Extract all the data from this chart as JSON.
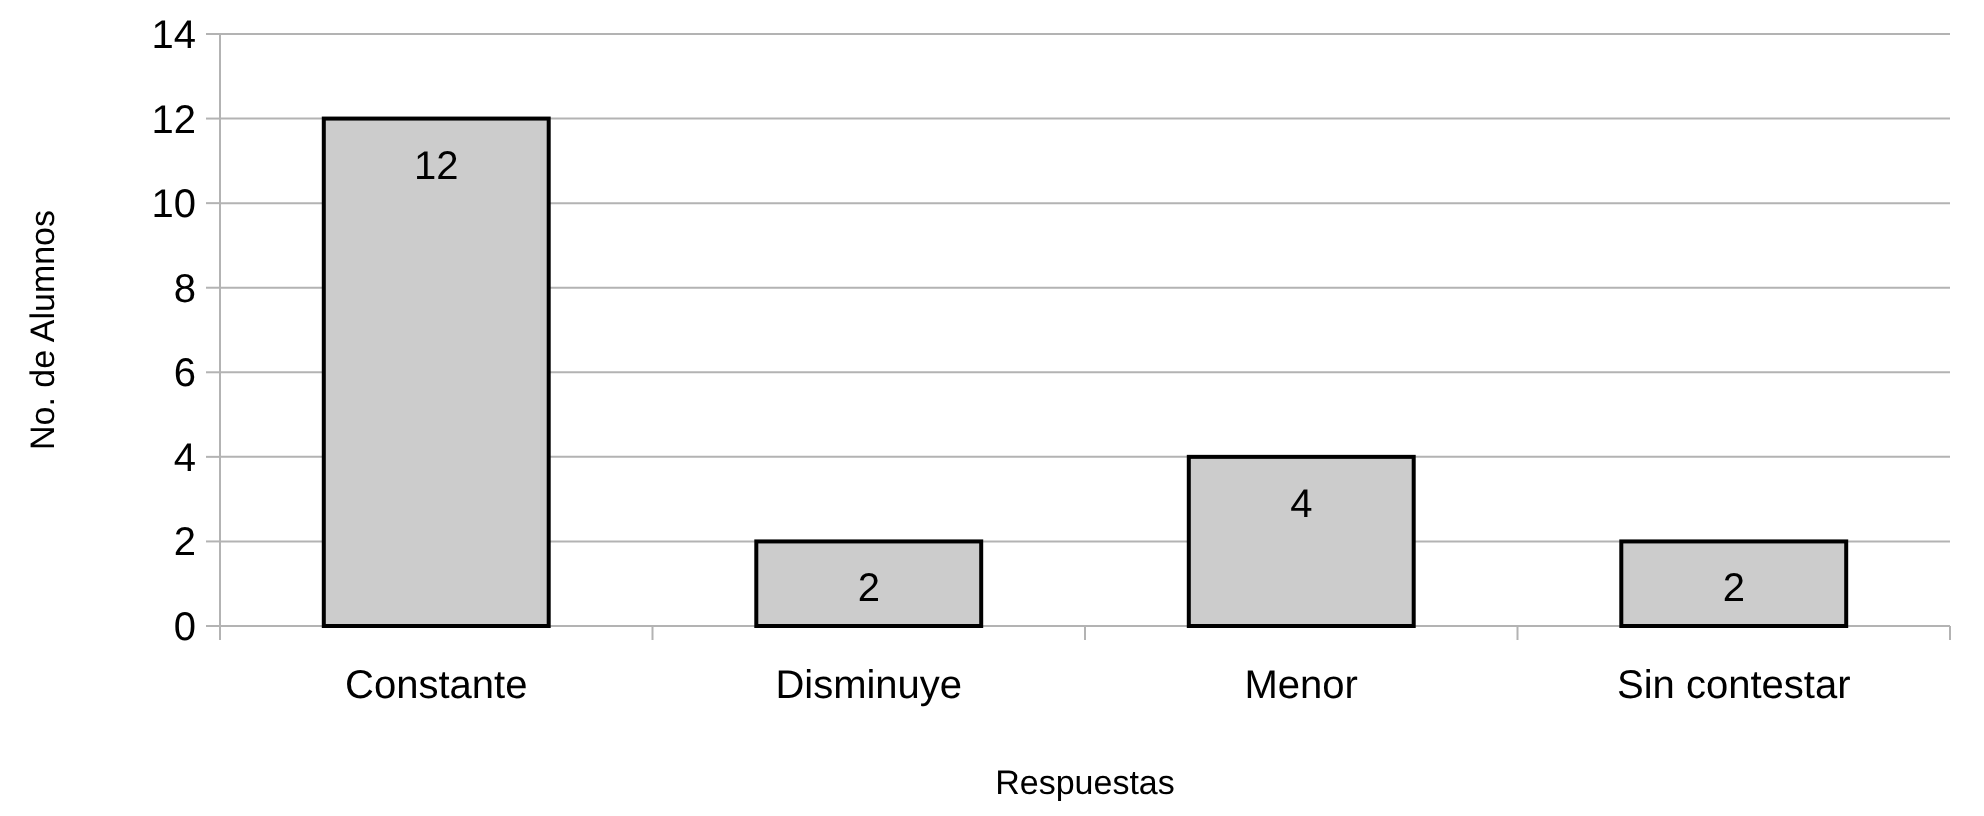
{
  "chart_data": {
    "type": "bar",
    "xlabel": "Respuestas",
    "ylabel": "No. de Alumnos",
    "categories": [
      "Constante",
      "Disminuye",
      "Menor",
      "Sin contestar"
    ],
    "values": [
      12,
      2,
      4,
      2
    ],
    "color": "#cccccc",
    "ylim": [
      0,
      14
    ],
    "yticks": [
      0,
      2,
      4,
      6,
      8,
      10,
      12,
      14
    ],
    "grid": "y",
    "data_labels": true
  }
}
